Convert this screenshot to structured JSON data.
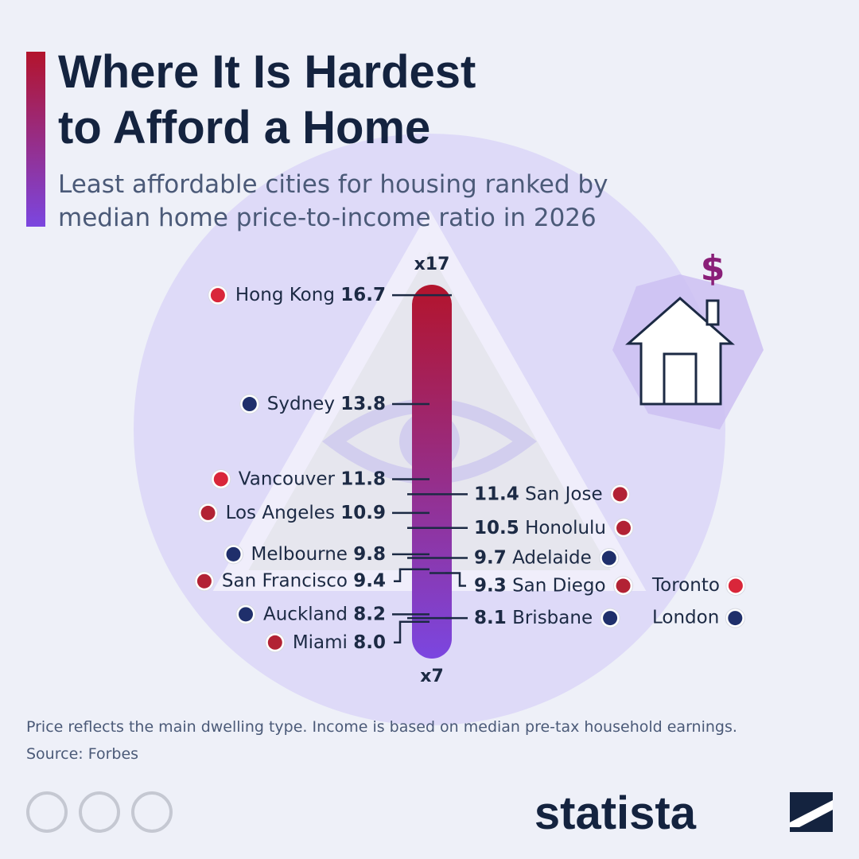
{
  "chart_data": {
    "type": "scale",
    "title": [
      "Where It Is Hardest",
      "to Afford a Home"
    ],
    "subtitle": [
      "Least affordable cities for housing ranked by",
      "median home price-to-income ratio in 2026"
    ],
    "categories": [
      "Hong Kong",
      "Sydney",
      "Vancouver",
      "Los Angeles",
      "Melbourne",
      "San Francisco",
      "Auckland",
      "Miami",
      "San Jose",
      "Honolulu",
      "Adelaide",
      "San Diego",
      "Brisbane",
      "Toronto",
      "London"
    ],
    "values": [
      16.7,
      13.8,
      11.8,
      10.9,
      9.8,
      9.4,
      8.2,
      8,
      11.4,
      10.5,
      9.7,
      9.3,
      8.1,
      9.3,
      8.1
    ],
    "value_labels": [
      "16.7",
      "13.8",
      "11.8",
      "10.9",
      "9.8",
      "9.4",
      "8.2",
      "8.0",
      "11.4",
      "10.5",
      "9.7",
      "9.3",
      "8.1",
      null,
      null
    ],
    "ylim": [
      7,
      17
    ],
    "yticks": [
      {
        "value": 17,
        "label": "x17"
      },
      {
        "value": 7,
        "label": "x7"
      }
    ],
    "note": "Price reflects the main dwelling type. Income is based on median pre-tax household earnings.",
    "source": "Source: Forbes",
    "brand": "statista"
  }
}
